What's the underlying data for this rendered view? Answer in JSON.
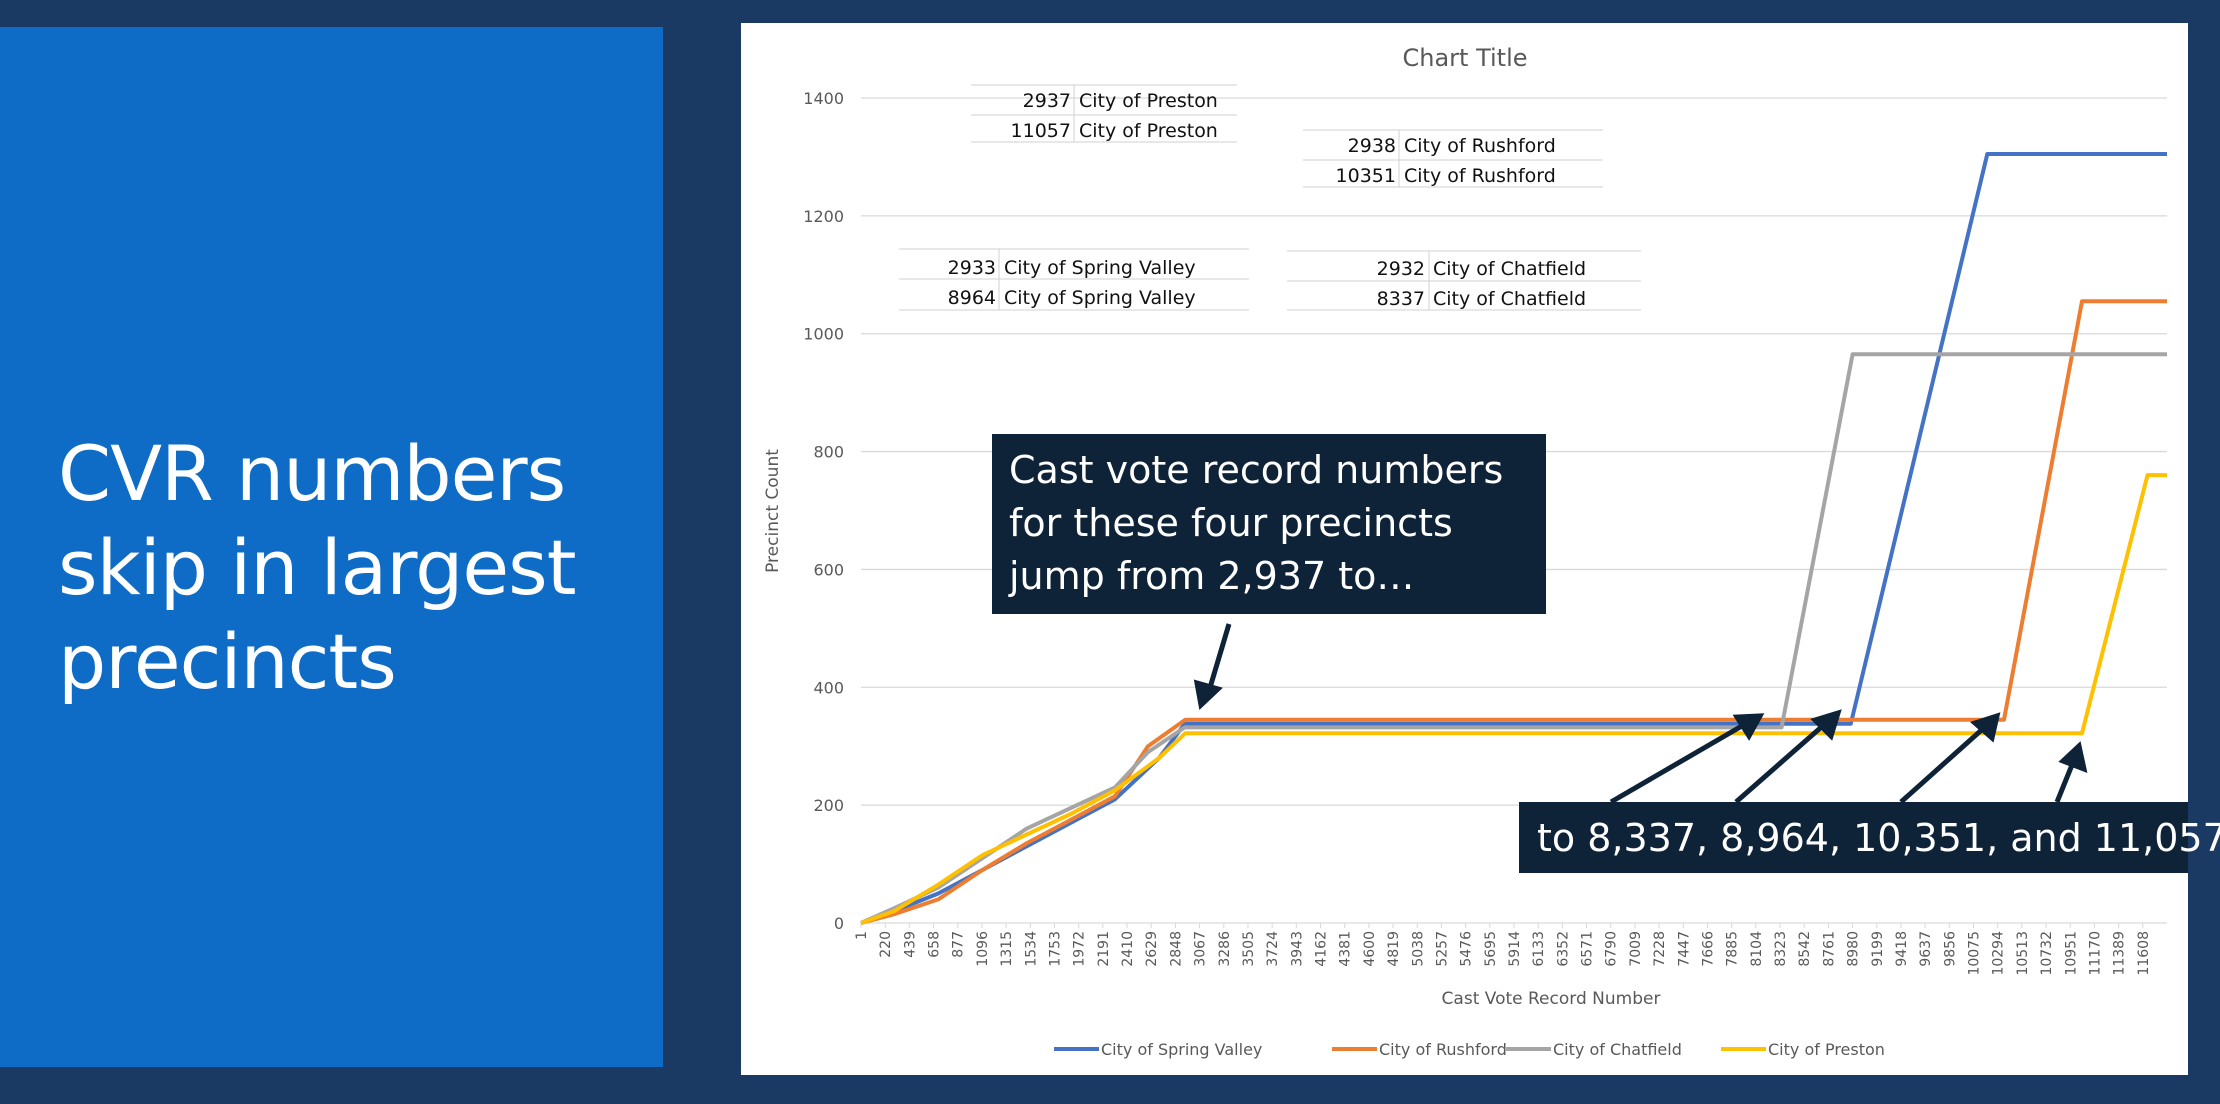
{
  "slide": {
    "title_lines": [
      "CVR numbers",
      "skip in largest",
      "precincts"
    ]
  },
  "tables": [
    {
      "rows": [
        {
          "num": "2937",
          "city": "City of Preston"
        },
        {
          "num": "11057",
          "city": "City of Preston"
        }
      ]
    },
    {
      "rows": [
        {
          "num": "2938",
          "city": "City of Rushford"
        },
        {
          "num": "10351",
          "city": "City of Rushford"
        }
      ]
    },
    {
      "rows": [
        {
          "num": "2933",
          "city": "City of Spring Valley"
        },
        {
          "num": "8964",
          "city": "City of Spring Valley"
        }
      ]
    },
    {
      "rows": [
        {
          "num": "2932",
          "city": "City of Chatfield"
        },
        {
          "num": "8337",
          "city": "City of Chatfield"
        }
      ]
    }
  ],
  "callouts": {
    "top_lines": [
      "Cast vote record numbers",
      "for these four precincts",
      "jump from 2,937 to…"
    ],
    "bottom": "to 8,337, 8,964, 10,351, and 11,057"
  },
  "colors": {
    "spring_valley": "#4472c4",
    "rushford": "#ed7d31",
    "chatfield": "#a5a5a5",
    "preston": "#ffc000",
    "left_panel": "#0f6cc6",
    "background": "#1b3a63",
    "callout": "#0e2238"
  },
  "chart_data": {
    "type": "line",
    "title": "Chart Title",
    "xlabel": "Cast Vote Record Number",
    "ylabel": "Precinct Count",
    "ylim": [
      0,
      1400
    ],
    "yticks": [
      0,
      200,
      400,
      600,
      800,
      1000,
      1200,
      1400
    ],
    "xlim": [
      1,
      11827
    ],
    "x_tick_labels": [
      "1",
      "220",
      "439",
      "658",
      "877",
      "1096",
      "1315",
      "1534",
      "1753",
      "1972",
      "2191",
      "2410",
      "2629",
      "2848",
      "3067",
      "3286",
      "3505",
      "3724",
      "3943",
      "4162",
      "4381",
      "4600",
      "4819",
      "5038",
      "5257",
      "5476",
      "5695",
      "5914",
      "6133",
      "6352",
      "6571",
      "6790",
      "7009",
      "7228",
      "7447",
      "7666",
      "7885",
      "8104",
      "8323",
      "8542",
      "8761",
      "8980",
      "9199",
      "9418",
      "9637",
      "9856",
      "10075",
      "10294",
      "10513",
      "10732",
      "10951",
      "11170",
      "11389",
      "11608"
    ],
    "grid": true,
    "legend_position": "bottom",
    "series": [
      {
        "name": "City of Spring Valley",
        "color": "#4472c4",
        "points": [
          [
            1,
            0
          ],
          [
            300,
            20
          ],
          [
            700,
            50
          ],
          [
            1100,
            90
          ],
          [
            1500,
            130
          ],
          [
            1900,
            170
          ],
          [
            2300,
            210
          ],
          [
            2700,
            280
          ],
          [
            2933,
            338
          ],
          [
            8964,
            338
          ],
          [
            10200,
            1305
          ],
          [
            11827,
            1305
          ]
        ]
      },
      {
        "name": "City of Rushford",
        "color": "#ed7d31",
        "points": [
          [
            1,
            0
          ],
          [
            300,
            15
          ],
          [
            700,
            40
          ],
          [
            1100,
            90
          ],
          [
            1500,
            135
          ],
          [
            1900,
            175
          ],
          [
            2300,
            215
          ],
          [
            2600,
            300
          ],
          [
            2938,
            345
          ],
          [
            10351,
            345
          ],
          [
            11057,
            1055
          ],
          [
            11827,
            1055
          ]
        ]
      },
      {
        "name": "City of Chatfield",
        "color": "#a5a5a5",
        "points": [
          [
            1,
            0
          ],
          [
            300,
            25
          ],
          [
            700,
            60
          ],
          [
            1100,
            110
          ],
          [
            1500,
            160
          ],
          [
            1900,
            195
          ],
          [
            2300,
            230
          ],
          [
            2600,
            290
          ],
          [
            2932,
            332
          ],
          [
            8337,
            332
          ],
          [
            8980,
            965
          ],
          [
            11827,
            965
          ]
        ]
      },
      {
        "name": "City of Preston",
        "color": "#ffc000",
        "points": [
          [
            1,
            0
          ],
          [
            300,
            20
          ],
          [
            700,
            65
          ],
          [
            1100,
            115
          ],
          [
            1500,
            150
          ],
          [
            1900,
            185
          ],
          [
            2300,
            225
          ],
          [
            2700,
            280
          ],
          [
            2937,
            322
          ],
          [
            11057,
            322
          ],
          [
            11650,
            760
          ],
          [
            11827,
            760
          ]
        ]
      }
    ]
  }
}
